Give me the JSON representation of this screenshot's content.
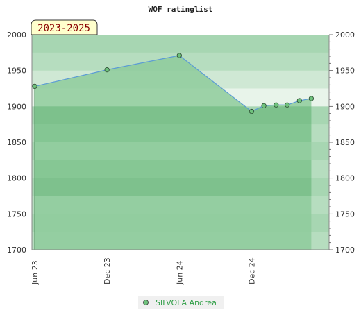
{
  "chart_data": {
    "type": "area",
    "title": "WOF ratinglist",
    "period_label": "2023-2025",
    "xlabel": "",
    "ylabel": "",
    "ylim": [
      1700,
      2000
    ],
    "y_ticks": [
      1700,
      1750,
      1800,
      1850,
      1900,
      1950,
      2000
    ],
    "x_range": [
      "2023-05-25",
      "2025-06-15"
    ],
    "x_ticks": [
      {
        "date": "2023-06-01",
        "label": "Jun 23"
      },
      {
        "date": "2023-12-01",
        "label": "Dec 23"
      },
      {
        "date": "2024-06-01",
        "label": "Jun 24"
      },
      {
        "date": "2024-12-01",
        "label": "Dec 24"
      }
    ],
    "series": [
      {
        "name": "SILVOLA Andrea",
        "x": [
          "2023-06-01",
          "2023-12-01",
          "2024-06-01",
          "2024-12-01",
          "2025-01-01",
          "2025-02-01",
          "2025-03-01",
          "2025-04-01",
          "2025-05-01"
        ],
        "values": [
          1928,
          1951,
          1971,
          1893,
          1901,
          1902,
          1902,
          1908,
          1911
        ]
      }
    ],
    "legend_position": "bottom-center",
    "grid": false,
    "colors": {
      "area_fill": "#8ecb9b",
      "line": "#5b9bd5",
      "marker": "#6fc27d",
      "legend_text": "#2e9e45",
      "period_badge_fill": "#ffffcc",
      "period_text": "#8b0000"
    }
  }
}
